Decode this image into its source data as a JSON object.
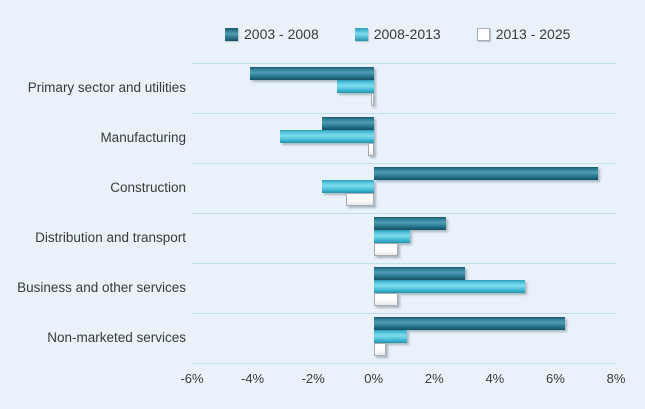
{
  "chart_data": {
    "type": "bar",
    "orientation": "horizontal",
    "title": "",
    "xlabel": "",
    "ylabel": "",
    "xlim": [
      -6,
      8
    ],
    "x_tick_step": 2,
    "x_ticks": [
      "-6%",
      "-4%",
      "-2%",
      "0%",
      "2%",
      "4%",
      "6%",
      "8%"
    ],
    "grid": "row-separator horizontal lines",
    "legend_position": "top",
    "categories": [
      "Primary sector and utilities",
      "Manufacturing",
      "Construction",
      "Distribution and transport",
      "Business and other services",
      "Non-marketed services"
    ],
    "series": [
      {
        "name": "2003 - 2008",
        "color": "#2D7D95",
        "values": [
          -4.1,
          -1.7,
          7.4,
          2.4,
          3.0,
          6.3
        ]
      },
      {
        "name": "2008-2013",
        "color": "#4EC2DB",
        "values": [
          -1.2,
          -3.1,
          -1.7,
          1.2,
          5.0,
          1.1
        ]
      },
      {
        "name": "2013 - 2025",
        "color": "#FFFFFF",
        "values": [
          -0.1,
          -0.2,
          -0.9,
          0.8,
          0.8,
          0.4
        ]
      }
    ]
  },
  "colors": {
    "background": "#E9F2FA",
    "gridline": "#BFE0EB",
    "text": "#3A3A3A",
    "series_dark_teal": "#2D7D95",
    "series_cyan": "#4EC2DB",
    "series_white": "#FFFFFF"
  }
}
